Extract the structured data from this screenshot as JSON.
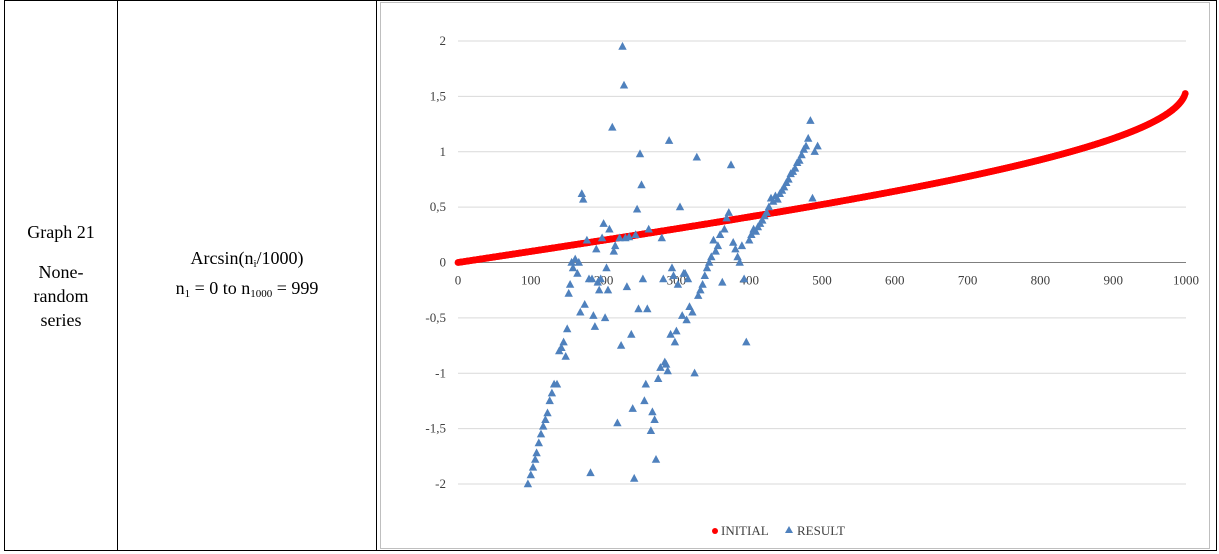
{
  "row": {
    "graph_label": "Graph 21",
    "series_desc": [
      "None-",
      "random",
      "series"
    ],
    "formula_main": "Arcsin(n",
    "formula_main_sub": "i",
    "formula_main_tail": "/1000)",
    "formula_range_a": "n",
    "formula_range_a_sub": "1",
    "formula_range_mid": " = 0 to n",
    "formula_range_b_sub": "1000",
    "formula_range_tail": " = 999"
  },
  "colors": {
    "initial": "#ff0000",
    "result": "#4f81bd",
    "grid": "#d9d9d9",
    "axis": "#7f7f7f"
  },
  "chart_data": {
    "type": "scatter",
    "xlim": [
      0,
      1000
    ],
    "ylim": [
      -2,
      2
    ],
    "xticks": [
      "0",
      "100",
      "200",
      "300",
      "400",
      "500",
      "600",
      "700",
      "800",
      "900",
      "1000"
    ],
    "yticks": [
      "2",
      "1,5",
      "1",
      "0,5",
      "0",
      "-0,5",
      "-1",
      "-1,5",
      "-2"
    ],
    "grid": true,
    "legend_position": "bottom",
    "legend": [
      "INITIAL",
      "RESULT"
    ],
    "series": [
      {
        "name": "INITIAL",
        "marker": "dot",
        "formula": "arcsin(x/1000)",
        "x_range": [
          0,
          999
        ]
      },
      {
        "name": "RESULT",
        "marker": "triangle",
        "points": [
          [
            96,
            -2.0
          ],
          [
            100,
            -1.92
          ],
          [
            103,
            -1.85
          ],
          [
            106,
            -1.78
          ],
          [
            108,
            -1.72
          ],
          [
            111,
            -1.63
          ],
          [
            114,
            -1.55
          ],
          [
            117,
            -1.48
          ],
          [
            120,
            -1.42
          ],
          [
            123,
            -1.36
          ],
          [
            126,
            -1.25
          ],
          [
            129,
            -1.18
          ],
          [
            132,
            -1.1
          ],
          [
            136,
            -1.1
          ],
          [
            139,
            -0.8
          ],
          [
            142,
            -0.77
          ],
          [
            145,
            -0.72
          ],
          [
            148,
            -0.85
          ],
          [
            150,
            -0.6
          ],
          [
            152,
            -0.28
          ],
          [
            154,
            -0.2
          ],
          [
            156,
            0.0
          ],
          [
            158,
            -0.05
          ],
          [
            161,
            0.03
          ],
          [
            164,
            -0.1
          ],
          [
            166,
            0.0
          ],
          [
            168,
            -0.45
          ],
          [
            170,
            0.62
          ],
          [
            172,
            0.57
          ],
          [
            174,
            -0.38
          ],
          [
            177,
            0.2
          ],
          [
            180,
            -0.15
          ],
          [
            182,
            -1.9
          ],
          [
            184,
            -0.15
          ],
          [
            186,
            -0.48
          ],
          [
            188,
            -0.58
          ],
          [
            190,
            0.12
          ],
          [
            192,
            -0.18
          ],
          [
            194,
            -0.25
          ],
          [
            196,
            -0.15
          ],
          [
            198,
            0.22
          ],
          [
            200,
            0.35
          ],
          [
            202,
            -0.5
          ],
          [
            204,
            -0.05
          ],
          [
            206,
            -0.25
          ],
          [
            208,
            0.3
          ],
          [
            212,
            1.22
          ],
          [
            214,
            0.1
          ],
          [
            216,
            0.15
          ],
          [
            219,
            -1.45
          ],
          [
            222,
            0.22
          ],
          [
            224,
            -0.75
          ],
          [
            226,
            1.95
          ],
          [
            228,
            1.6
          ],
          [
            230,
            0.22
          ],
          [
            232,
            -0.22
          ],
          [
            235,
            0.23
          ],
          [
            238,
            -0.65
          ],
          [
            240,
            -1.32
          ],
          [
            242,
            -1.95
          ],
          [
            244,
            0.25
          ],
          [
            246,
            0.48
          ],
          [
            248,
            -0.42
          ],
          [
            250,
            0.98
          ],
          [
            252,
            0.7
          ],
          [
            254,
            -0.15
          ],
          [
            256,
            -1.25
          ],
          [
            258,
            -1.1
          ],
          [
            260,
            -0.42
          ],
          [
            262,
            0.3
          ],
          [
            265,
            -1.52
          ],
          [
            267,
            -1.35
          ],
          [
            270,
            -1.42
          ],
          [
            272,
            -1.78
          ],
          [
            275,
            -1.05
          ],
          [
            278,
            -0.95
          ],
          [
            280,
            0.22
          ],
          [
            282,
            -0.15
          ],
          [
            284,
            -0.9
          ],
          [
            286,
            -0.92
          ],
          [
            288,
            -0.98
          ],
          [
            290,
            1.1
          ],
          [
            292,
            -0.65
          ],
          [
            294,
            -0.05
          ],
          [
            296,
            -0.12
          ],
          [
            298,
            -0.72
          ],
          [
            300,
            -0.62
          ],
          [
            302,
            -0.2
          ],
          [
            305,
            0.5
          ],
          [
            308,
            -0.48
          ],
          [
            310,
            -0.1
          ],
          [
            312,
            -0.1
          ],
          [
            314,
            -0.52
          ],
          [
            316,
            -0.15
          ],
          [
            318,
            -0.4
          ],
          [
            322,
            -0.45
          ],
          [
            325,
            -1.0
          ],
          [
            328,
            0.95
          ],
          [
            330,
            -0.3
          ],
          [
            333,
            -0.25
          ],
          [
            336,
            -0.2
          ],
          [
            339,
            -0.12
          ],
          [
            342,
            -0.05
          ],
          [
            345,
            0.0
          ],
          [
            348,
            0.05
          ],
          [
            351,
            0.2
          ],
          [
            354,
            0.1
          ],
          [
            357,
            0.15
          ],
          [
            360,
            0.25
          ],
          [
            363,
            -0.18
          ],
          [
            366,
            0.3
          ],
          [
            369,
            0.4
          ],
          [
            372,
            0.45
          ],
          [
            375,
            0.88
          ],
          [
            378,
            0.18
          ],
          [
            381,
            0.12
          ],
          [
            384,
            0.05
          ],
          [
            387,
            0.0
          ],
          [
            390,
            0.15
          ],
          [
            393,
            -0.15
          ],
          [
            396,
            -0.72
          ],
          [
            400,
            0.2
          ],
          [
            403,
            0.25
          ],
          [
            406,
            0.3
          ],
          [
            409,
            0.28
          ],
          [
            412,
            0.32
          ],
          [
            415,
            0.35
          ],
          [
            418,
            0.38
          ],
          [
            421,
            0.42
          ],
          [
            424,
            0.45
          ],
          [
            427,
            0.5
          ],
          [
            430,
            0.58
          ],
          [
            433,
            0.55
          ],
          [
            436,
            0.6
          ],
          [
            439,
            0.57
          ],
          [
            442,
            0.62
          ],
          [
            445,
            0.65
          ],
          [
            448,
            0.68
          ],
          [
            451,
            0.72
          ],
          [
            454,
            0.75
          ],
          [
            457,
            0.8
          ],
          [
            460,
            0.82
          ],
          [
            463,
            0.85
          ],
          [
            466,
            0.9
          ],
          [
            469,
            0.92
          ],
          [
            472,
            0.97
          ],
          [
            475,
            1.02
          ],
          [
            478,
            1.05
          ],
          [
            481,
            1.12
          ],
          [
            484,
            1.28
          ],
          [
            487,
            0.58
          ],
          [
            490,
            1.0
          ],
          [
            494,
            1.05
          ]
        ]
      }
    ]
  }
}
